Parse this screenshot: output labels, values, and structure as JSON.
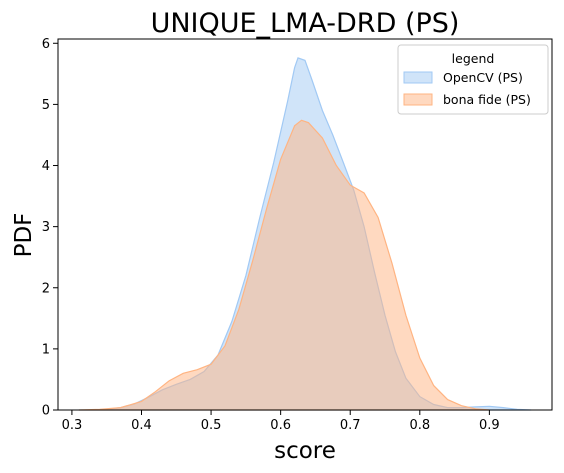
{
  "chart_data": {
    "type": "area",
    "title": "UNIQUE_LMA-DRD (PS)",
    "xlabel": "score",
    "ylabel": "PDF",
    "xlim": [
      0.28,
      0.99
    ],
    "ylim": [
      0,
      6.07
    ],
    "x_ticks": [
      "0.3",
      "0.4",
      "0.5",
      "0.6",
      "0.7",
      "0.8",
      "0.9"
    ],
    "y_ticks": [
      "0",
      "1",
      "2",
      "3",
      "4",
      "5",
      "6"
    ],
    "grid": false,
    "legend": {
      "title": "legend",
      "position": "top-right"
    },
    "series": [
      {
        "name": "OpenCV (PS)",
        "fill_color": "#a1c9f4",
        "line_color": "#a1c9f4",
        "points": [
          [
            0.31,
            0.0
          ],
          [
            0.33,
            0.0
          ],
          [
            0.35,
            0.01
          ],
          [
            0.37,
            0.04
          ],
          [
            0.39,
            0.1
          ],
          [
            0.41,
            0.21
          ],
          [
            0.43,
            0.33
          ],
          [
            0.45,
            0.42
          ],
          [
            0.47,
            0.5
          ],
          [
            0.49,
            0.63
          ],
          [
            0.51,
            0.9
          ],
          [
            0.53,
            1.45
          ],
          [
            0.55,
            2.2
          ],
          [
            0.57,
            3.15
          ],
          [
            0.59,
            4.05
          ],
          [
            0.61,
            5.05
          ],
          [
            0.62,
            5.6
          ],
          [
            0.625,
            5.76
          ],
          [
            0.635,
            5.72
          ],
          [
            0.645,
            5.4
          ],
          [
            0.66,
            4.9
          ],
          [
            0.675,
            4.5
          ],
          [
            0.69,
            4.05
          ],
          [
            0.705,
            3.6
          ],
          [
            0.72,
            3.0
          ],
          [
            0.735,
            2.25
          ],
          [
            0.75,
            1.55
          ],
          [
            0.765,
            0.95
          ],
          [
            0.78,
            0.52
          ],
          [
            0.8,
            0.22
          ],
          [
            0.82,
            0.09
          ],
          [
            0.84,
            0.04
          ],
          [
            0.86,
            0.04
          ],
          [
            0.88,
            0.05
          ],
          [
            0.9,
            0.06
          ],
          [
            0.92,
            0.04
          ],
          [
            0.94,
            0.01
          ],
          [
            0.96,
            0.0
          ]
        ]
      },
      {
        "name": "bona fide (PS)",
        "fill_color": "#ffb482",
        "line_color": "#ffb482",
        "points": [
          [
            0.31,
            0.0
          ],
          [
            0.34,
            0.01
          ],
          [
            0.37,
            0.04
          ],
          [
            0.4,
            0.14
          ],
          [
            0.42,
            0.3
          ],
          [
            0.44,
            0.48
          ],
          [
            0.46,
            0.6
          ],
          [
            0.48,
            0.66
          ],
          [
            0.5,
            0.75
          ],
          [
            0.52,
            1.05
          ],
          [
            0.54,
            1.65
          ],
          [
            0.56,
            2.45
          ],
          [
            0.58,
            3.3
          ],
          [
            0.6,
            4.1
          ],
          [
            0.62,
            4.65
          ],
          [
            0.63,
            4.74
          ],
          [
            0.64,
            4.7
          ],
          [
            0.66,
            4.45
          ],
          [
            0.68,
            4.0
          ],
          [
            0.7,
            3.68
          ],
          [
            0.72,
            3.55
          ],
          [
            0.74,
            3.15
          ],
          [
            0.76,
            2.4
          ],
          [
            0.78,
            1.55
          ],
          [
            0.8,
            0.85
          ],
          [
            0.82,
            0.4
          ],
          [
            0.84,
            0.17
          ],
          [
            0.86,
            0.07
          ],
          [
            0.88,
            0.02
          ],
          [
            0.9,
            0.0
          ]
        ]
      }
    ]
  }
}
